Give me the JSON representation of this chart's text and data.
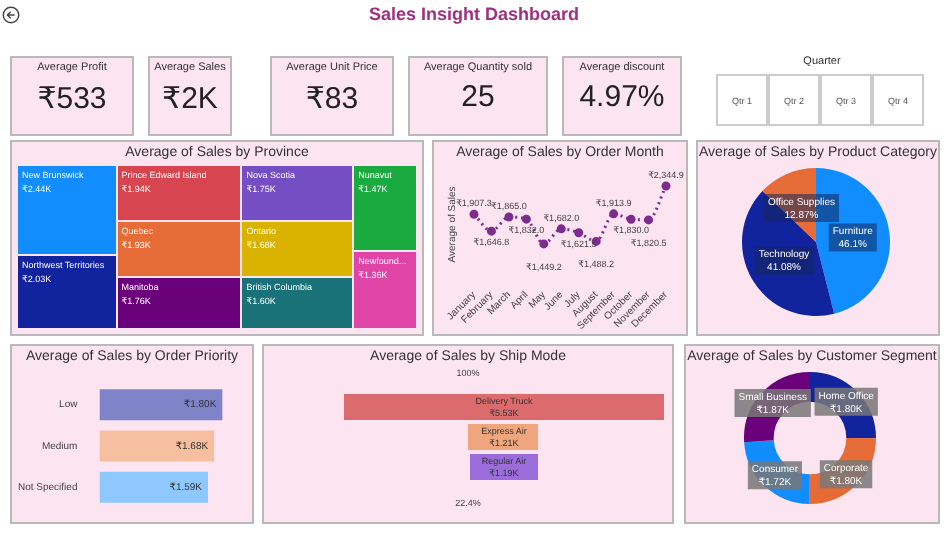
{
  "chart_data": [
    {
      "type": "other",
      "title": "Sales Insight Dashboard",
      "annotations": [
        "Average Profit",
        "₹533",
        "Average Sales",
        "₹2K",
        "Average Unit Price",
        "₹83",
        "Average Quantity sold",
        "25",
        "Average discount",
        "4.97%"
      ]
    },
    {
      "type": "other",
      "title": "Quarter",
      "annotations": [
        "Qtr 1",
        "Qtr 2",
        "Qtr 3",
        "Qtr 4"
      ]
    },
    {
      "type": "other",
      "title": "Average of Sales by Province",
      "categories": [
        "New Brunswick",
        "Northwest Territories",
        "Prince Edward Island",
        "Quebec",
        "Manitoba",
        "Nova Scotia",
        "Ontario",
        "British Columbia",
        "Nunavut",
        "Newfound..."
      ],
      "values": [
        2.44,
        2.03,
        1.94,
        1.93,
        1.76,
        1.75,
        1.68,
        1.6,
        1.47,
        1.36
      ],
      "value_labels": [
        "₹2.44K",
        "₹2.03K",
        "₹1.94K",
        "₹1.93K",
        "₹1.76K",
        "₹1.75K",
        "₹1.68K",
        "₹1.60K",
        "₹1.47K",
        "₹1.36K"
      ],
      "colors": [
        "#118dff",
        "#12239e",
        "#d64550",
        "#e66c37",
        "#6b007b",
        "#744ec2",
        "#d9b300",
        "#197278",
        "#1aab40",
        "#e044a7"
      ]
    },
    {
      "type": "line",
      "title": "Average of Sales by Order Month",
      "ylabel": "Average of Sales",
      "categories": [
        "January",
        "February",
        "March",
        "April",
        "May",
        "June",
        "July",
        "August",
        "September",
        "October",
        "November",
        "December"
      ],
      "values": [
        1907.3,
        1646.8,
        1865.0,
        1832.0,
        1449.2,
        1682.0,
        1621.5,
        1488.2,
        1913.9,
        1830.0,
        1820.5,
        2344.9
      ],
      "value_labels": [
        "₹1,907.3",
        "₹1,646.8",
        "₹1,865.0",
        "₹1,832.0",
        "₹1,449.2",
        "₹1,682.0",
        "₹1,621.5",
        "₹1,488.2",
        "₹1,913.9",
        "₹1,830.0",
        "₹1,820.5",
        "₹2,344.9"
      ],
      "color": "#7b2d8e",
      "marker": "circle",
      "line_style": "dotted"
    },
    {
      "type": "pie",
      "title": "Average of Sales by Product Category",
      "categories": [
        "Furniture",
        "Technology",
        "Office Supplies"
      ],
      "values": [
        46.05,
        41.08,
        12.87
      ],
      "value_labels": [
        "46.1%",
        "41.08%",
        "12.87%"
      ],
      "colors": [
        "#118dff",
        "#12239e",
        "#e66c37"
      ]
    },
    {
      "type": "bar",
      "orientation": "horizontal",
      "title": "Average of Sales by Order Priority",
      "categories": [
        "Low",
        "Medium",
        "Not Specified"
      ],
      "values": [
        1.8,
        1.68,
        1.59
      ],
      "value_labels": [
        "₹1.80K",
        "₹1.68K",
        "₹1.59K"
      ],
      "colors": [
        "#7f84c9",
        "#f5bfa0",
        "#8fc8ff"
      ]
    },
    {
      "type": "other",
      "title": "Average of Sales by Ship Mode",
      "categories": [
        "Delivery Truck",
        "Express Air",
        "Regular Air"
      ],
      "values": [
        5.53,
        1.21,
        1.19
      ],
      "value_labels": [
        "₹5.53K",
        "₹1.21K",
        "₹1.19K"
      ],
      "colors": [
        "#dc6b6e",
        "#f0a67c",
        "#9b6ddb"
      ],
      "annotations": [
        "100%",
        "22.4%"
      ]
    },
    {
      "type": "donut",
      "title": "Average of Sales by Customer Segment",
      "categories": [
        "Home Office",
        "Corporate",
        "Consumer",
        "Small Business"
      ],
      "values": [
        1.8,
        1.8,
        1.72,
        1.87
      ],
      "value_labels": [
        "₹1.80K",
        "₹1.80K",
        "₹1.72K",
        "₹1.87K"
      ],
      "colors": [
        "#12239e",
        "#e66c37",
        "#118dff",
        "#6b007b"
      ]
    }
  ]
}
